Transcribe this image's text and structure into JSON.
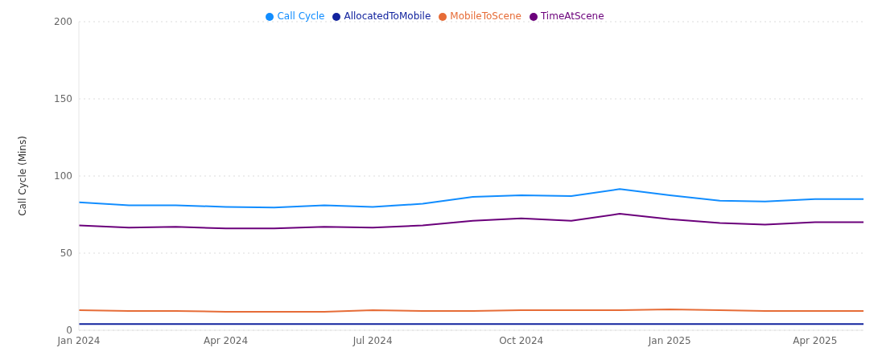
{
  "chart_data": {
    "type": "line",
    "ylabel": "Call Cycle (Mins)",
    "x": [
      "2024-01",
      "2024-02",
      "2024-03",
      "2024-04",
      "2024-05",
      "2024-06",
      "2024-07",
      "2024-08",
      "2024-09",
      "2024-10",
      "2024-11",
      "2024-12",
      "2025-01",
      "2025-02",
      "2025-03",
      "2025-04",
      "2025-05"
    ],
    "series": [
      {
        "name": "Call Cycle",
        "color": "#118dff",
        "values": [
          83,
          81,
          81,
          80,
          79.5,
          81,
          80,
          82,
          86.5,
          87.5,
          87,
          91.5,
          87.5,
          84,
          83.5,
          85,
          85
        ]
      },
      {
        "name": "AllocatedToMobile",
        "color": "#12239e",
        "values": [
          4,
          4,
          4,
          4,
          4,
          4,
          4,
          4,
          4,
          4,
          4,
          4,
          4,
          4,
          4,
          4,
          4
        ]
      },
      {
        "name": "MobileToScene",
        "color": "#e66c37",
        "values": [
          13,
          12.5,
          12.5,
          12,
          12,
          12,
          13,
          12.5,
          12.5,
          13,
          13,
          13,
          13.5,
          13,
          12.5,
          12.5,
          12.5
        ]
      },
      {
        "name": "TimeAtScene",
        "color": "#6b007b",
        "values": [
          68,
          66.5,
          67,
          66,
          66,
          67,
          66.5,
          68,
          71,
          72.5,
          71,
          75.5,
          72,
          69.5,
          68.5,
          70,
          70
        ]
      }
    ],
    "xlim": [
      "2024-01",
      "2025-05"
    ],
    "xticks": [
      {
        "value": "2024-01",
        "label": "Jan 2024"
      },
      {
        "value": "2024-04",
        "label": "Apr 2024"
      },
      {
        "value": "2024-07",
        "label": "Jul 2024"
      },
      {
        "value": "2024-10",
        "label": "Oct 2024"
      },
      {
        "value": "2025-01",
        "label": "Jan 2025"
      },
      {
        "value": "2025-04",
        "label": "Apr 2025"
      }
    ],
    "ylim": [
      0,
      200
    ],
    "yticks": [
      0,
      50,
      100,
      150,
      200
    ],
    "grid": "y",
    "legend": "top",
    "marker": "none",
    "line_style": "solid"
  }
}
